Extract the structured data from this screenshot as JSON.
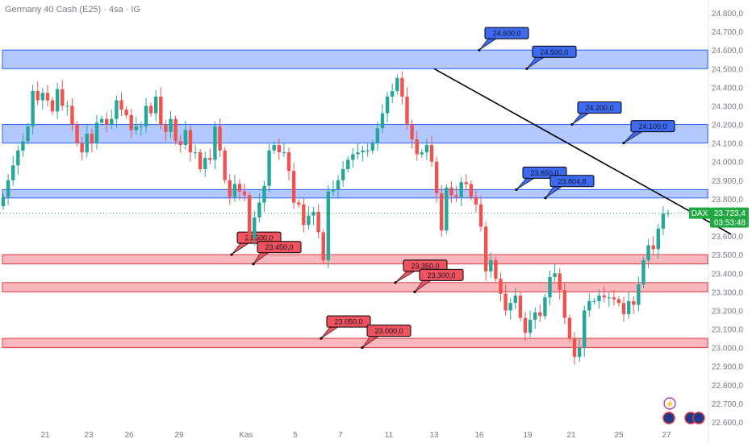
{
  "header": {
    "title": "Germany 40 Cash (E25) · 4sa · IG"
  },
  "colors": {
    "up": "#26a69a",
    "down": "#ef5350",
    "resistance_fill": "#b3c9ff",
    "resistance_stroke": "#2962ff",
    "resistance_label": "#3d6af0",
    "support_fill": "#f7b7bd",
    "support_stroke": "#e53945",
    "support_label": "#ef5360",
    "trendline": "#000000",
    "price_tag": "#22a843"
  },
  "price_tag": {
    "symbol": "DAX",
    "price": "23.723,4",
    "countdown": "03:53:48"
  },
  "icons": [
    "lightning-icon",
    "currency-flag-icon",
    "exchange-flag-icon"
  ],
  "chart_data": {
    "type": "candlestick",
    "instrument": "Germany 40 Cash (E25)",
    "timeframe": "4sa",
    "y_axis": {
      "ticks": [
        "22.600,0",
        "22.700,0",
        "22.800,0",
        "22.900,0",
        "23.000,0",
        "23.100,0",
        "23.200,0",
        "23.300,0",
        "23.400,0",
        "23.500,0",
        "23.600,0",
        "23.700,0",
        "23.800,0",
        "23.900,0",
        "24.000,0",
        "24.100,0",
        "24.200,0",
        "24.300,0",
        "24.400,0",
        "24.500,0",
        "24.600,0",
        "24.700,0",
        "24.800,0"
      ],
      "range": [
        22600,
        24800
      ]
    },
    "x_axis": {
      "ticks": [
        "21",
        "23",
        "26",
        "29",
        "Kas",
        "5",
        "7",
        "11",
        "13",
        "16",
        "19",
        "21",
        "25",
        "27"
      ]
    },
    "zones": [
      {
        "kind": "resistance",
        "top": 24600,
        "bottom": 24500,
        "labels": [
          "24.600,0",
          "24.500,0"
        ]
      },
      {
        "kind": "resistance",
        "top": 24200,
        "bottom": 24100,
        "labels": [
          "24.200,0",
          "24.100,0"
        ]
      },
      {
        "kind": "resistance",
        "top": 23850,
        "bottom": 23804.8,
        "labels": [
          "23.850,0",
          "23.804,8"
        ]
      },
      {
        "kind": "support",
        "top": 23500,
        "bottom": 23450,
        "labels": [
          "23.500,0",
          "23.450,0"
        ]
      },
      {
        "kind": "support",
        "top": 23350,
        "bottom": 23300,
        "labels": [
          "23.350,0",
          "23.300,0"
        ]
      },
      {
        "kind": "support",
        "top": 23050,
        "bottom": 23000,
        "labels": [
          "23.050,0",
          "23.000,0"
        ]
      }
    ],
    "trendline": {
      "from": {
        "x": "13",
        "y": 24500
      },
      "to": {
        "x": "beyond 27",
        "y": 23630
      }
    },
    "last_price": 23723.4,
    "closes": [
      23810,
      23900,
      23980,
      24060,
      24110,
      24190,
      24380,
      24330,
      24370,
      24330,
      24270,
      24390,
      24300,
      24300,
      24200,
      24100,
      24050,
      24150,
      24100,
      24210,
      24230,
      24200,
      24230,
      24330,
      24280,
      24250,
      24170,
      24190,
      24190,
      24300,
      24260,
      24350,
      24200,
      24160,
      24230,
      24110,
      24090,
      24170,
      24050,
      24050,
      23960,
      24020,
      24010,
      24190,
      24060,
      23900,
      23810,
      23880,
      23840,
      23820,
      23590,
      23700,
      23780,
      23870,
      24060,
      24090,
      24050,
      24050,
      23950,
      23780,
      23770,
      23660,
      23710,
      23730,
      23620,
      23470,
      23840,
      23850,
      23900,
      23960,
      24010,
      24040,
      24050,
      24060,
      24060,
      24100,
      24180,
      24260,
      24350,
      24380,
      24450,
      24350,
      24200,
      24120,
      24040,
      24050,
      24090,
      24000,
      23830,
      23630,
      23860,
      23820,
      23810,
      23890,
      23880,
      23810,
      23770,
      23650,
      23410,
      23470,
      23370,
      23290,
      23200,
      23240,
      23280,
      23160,
      23080,
      23150,
      23190,
      23170,
      23270,
      23380,
      23400,
      23310,
      23160,
      23050,
      22950,
      23000,
      23200,
      23250,
      23250,
      23280,
      23270,
      23270,
      23260,
      23240,
      23180,
      23250,
      23230,
      23340,
      23470,
      23550,
      23530,
      23640,
      23720,
      23723
    ]
  }
}
